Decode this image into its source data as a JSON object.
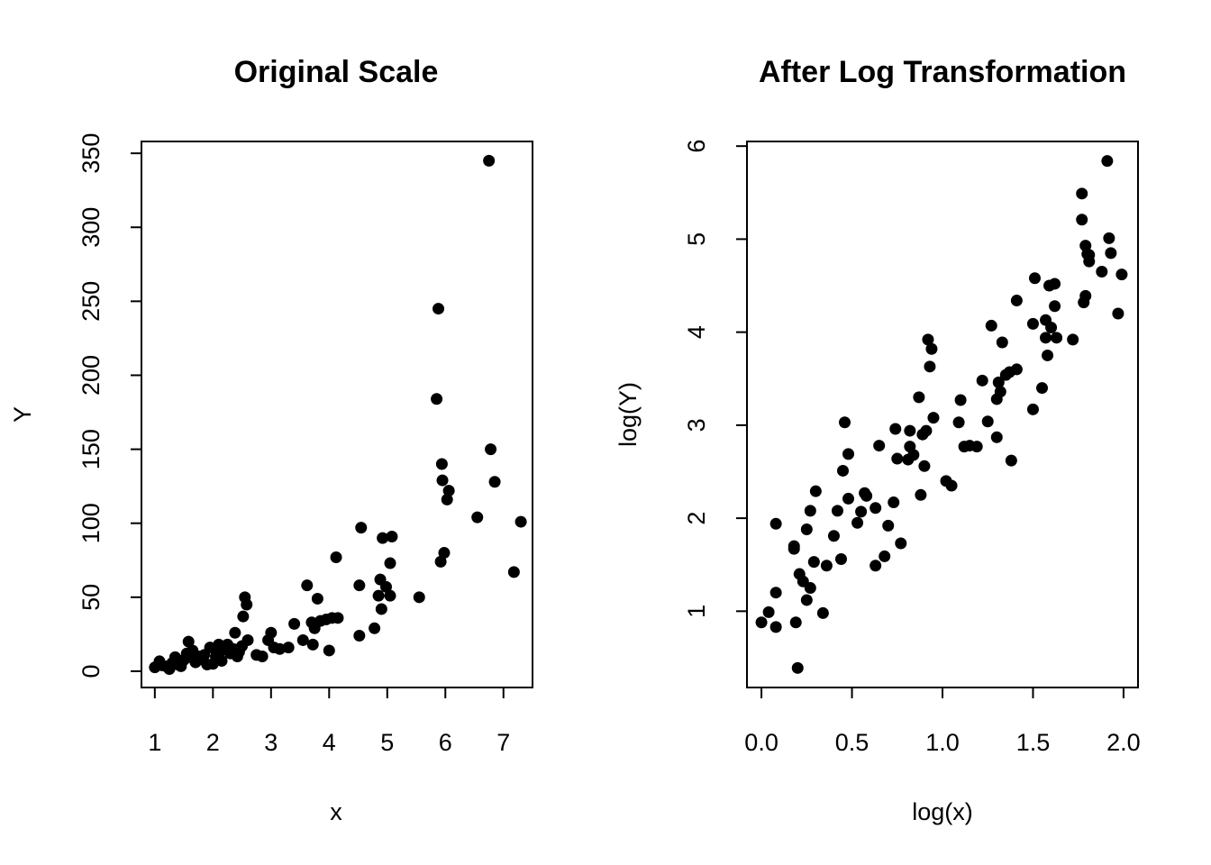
{
  "chart_data": [
    {
      "type": "scatter",
      "title": "Original Scale",
      "xlabel": "x",
      "ylabel": "Y",
      "xlim": [
        0.77,
        7.5
      ],
      "ylim": [
        -11,
        358
      ],
      "xticks": [
        1,
        2,
        3,
        4,
        5,
        6,
        7
      ],
      "xtick_labels": [
        "1",
        "2",
        "3",
        "4",
        "5",
        "6",
        "7"
      ],
      "yticks": [
        0,
        50,
        100,
        150,
        200,
        250,
        300,
        350
      ],
      "ytick_labels": [
        "0",
        "50",
        "100",
        "150",
        "200",
        "250",
        "300",
        "350"
      ],
      "grid": false,
      "point_color": "#000000",
      "points": [
        [
          1.0,
          2.6
        ],
        [
          1.08,
          6.7
        ],
        [
          1.12,
          4.0
        ],
        [
          1.2,
          3.2
        ],
        [
          1.25,
          1.5
        ],
        [
          1.3,
          5.6
        ],
        [
          1.35,
          9.5
        ],
        [
          1.4,
          4.4
        ],
        [
          1.45,
          3.4
        ],
        [
          1.5,
          7.6
        ],
        [
          1.55,
          12.0
        ],
        [
          1.58,
          20.0
        ],
        [
          1.62,
          9.5
        ],
        [
          1.65,
          14.0
        ],
        [
          1.7,
          6.0
        ],
        [
          1.75,
          10.0
        ],
        [
          1.8,
          8.0
        ],
        [
          1.85,
          11.0
        ],
        [
          1.9,
          4.5
        ],
        [
          1.95,
          16.0
        ],
        [
          2.0,
          5.0
        ],
        [
          2.05,
          10.0
        ],
        [
          2.1,
          18.0
        ],
        [
          2.12,
          13.0
        ],
        [
          2.15,
          7.0
        ],
        [
          2.2,
          16.0
        ],
        [
          2.25,
          18.0
        ],
        [
          2.3,
          12.0
        ],
        [
          2.35,
          15.0
        ],
        [
          2.38,
          26.0
        ],
        [
          2.42,
          10.0
        ],
        [
          2.45,
          13.0
        ],
        [
          2.5,
          17.0
        ],
        [
          2.52,
          37.0
        ],
        [
          2.55,
          50.0
        ],
        [
          2.58,
          45.0
        ],
        [
          2.6,
          21.0
        ],
        [
          2.75,
          11.0
        ],
        [
          2.85,
          10.0
        ],
        [
          2.95,
          21.0
        ],
        [
          3.0,
          26.0
        ],
        [
          3.05,
          16.0
        ],
        [
          3.15,
          15.0
        ],
        [
          3.3,
          16.0
        ],
        [
          3.4,
          32.0
        ],
        [
          3.55,
          21.0
        ],
        [
          3.62,
          58.0
        ],
        [
          3.7,
          33.0
        ],
        [
          3.72,
          18.0
        ],
        [
          3.75,
          29.0
        ],
        [
          3.8,
          49.0
        ],
        [
          3.85,
          34.0
        ],
        [
          3.95,
          35.0
        ],
        [
          4.0,
          14.0
        ],
        [
          4.05,
          36.0
        ],
        [
          4.15,
          36.0
        ],
        [
          4.12,
          77.0
        ],
        [
          4.52,
          24.0
        ],
        [
          4.52,
          58.0
        ],
        [
          4.55,
          97.0
        ],
        [
          4.78,
          29.0
        ],
        [
          4.85,
          51.0
        ],
        [
          4.88,
          62.0
        ],
        [
          4.9,
          42.0
        ],
        [
          4.92,
          90.0
        ],
        [
          4.98,
          57.0
        ],
        [
          5.05,
          73.0
        ],
        [
          5.05,
          51.0
        ],
        [
          5.08,
          91.0
        ],
        [
          5.55,
          50.0
        ],
        [
          5.85,
          184.0
        ],
        [
          5.88,
          245.0
        ],
        [
          5.92,
          74.0
        ],
        [
          5.94,
          140.0
        ],
        [
          5.95,
          129.0
        ],
        [
          5.98,
          80.0
        ],
        [
          6.03,
          116.0
        ],
        [
          6.06,
          122.0
        ],
        [
          6.55,
          104.0
        ],
        [
          6.75,
          345.0
        ],
        [
          6.78,
          150.0
        ],
        [
          6.85,
          128.0
        ],
        [
          7.18,
          67.0
        ],
        [
          7.3,
          101.0
        ]
      ]
    },
    {
      "type": "scatter",
      "title": "After Log Transformation",
      "xlabel": "log(x)",
      "ylabel": "log(Y)",
      "xlim": [
        -0.08,
        2.08
      ],
      "ylim": [
        0.18,
        6.05
      ],
      "xticks": [
        0.0,
        0.5,
        1.0,
        1.5,
        2.0
      ],
      "xtick_labels": [
        "0.0",
        "0.5",
        "1.0",
        "1.5",
        "2.0"
      ],
      "yticks": [
        1,
        2,
        3,
        4,
        5,
        6
      ],
      "ytick_labels": [
        "1",
        "2",
        "3",
        "4",
        "5",
        "6"
      ],
      "grid": false,
      "point_color": "#000000",
      "points": [
        [
          0.0,
          0.88
        ],
        [
          0.04,
          0.99
        ],
        [
          0.08,
          1.2
        ],
        [
          0.08,
          0.83
        ],
        [
          0.08,
          1.94
        ],
        [
          0.18,
          1.67
        ],
        [
          0.18,
          1.7
        ],
        [
          0.19,
          0.88
        ],
        [
          0.2,
          0.39
        ],
        [
          0.21,
          1.4
        ],
        [
          0.23,
          1.32
        ],
        [
          0.25,
          1.12
        ],
        [
          0.25,
          1.88
        ],
        [
          0.27,
          2.08
        ],
        [
          0.27,
          1.25
        ],
        [
          0.29,
          1.53
        ],
        [
          0.3,
          2.29
        ],
        [
          0.34,
          0.98
        ],
        [
          0.36,
          1.49
        ],
        [
          0.4,
          1.81
        ],
        [
          0.42,
          2.08
        ],
        [
          0.44,
          1.56
        ],
        [
          0.45,
          2.51
        ],
        [
          0.46,
          3.03
        ],
        [
          0.48,
          2.69
        ],
        [
          0.48,
          2.21
        ],
        [
          0.53,
          1.95
        ],
        [
          0.55,
          2.07
        ],
        [
          0.57,
          2.27
        ],
        [
          0.58,
          2.24
        ],
        [
          0.63,
          2.11
        ],
        [
          0.63,
          1.49
        ],
        [
          0.65,
          2.78
        ],
        [
          0.68,
          1.59
        ],
        [
          0.7,
          1.92
        ],
        [
          0.73,
          2.17
        ],
        [
          0.74,
          2.96
        ],
        [
          0.75,
          2.64
        ],
        [
          0.77,
          1.73
        ],
        [
          0.81,
          2.63
        ],
        [
          0.82,
          2.77
        ],
        [
          0.82,
          2.94
        ],
        [
          0.84,
          2.68
        ],
        [
          0.87,
          3.3
        ],
        [
          0.88,
          2.25
        ],
        [
          0.89,
          2.9
        ],
        [
          0.9,
          2.56
        ],
        [
          0.91,
          2.94
        ],
        [
          0.92,
          3.92
        ],
        [
          0.93,
          3.63
        ],
        [
          0.94,
          3.82
        ],
        [
          0.95,
          3.08
        ],
        [
          1.02,
          2.4
        ],
        [
          1.05,
          2.35
        ],
        [
          1.09,
          3.03
        ],
        [
          1.1,
          3.27
        ],
        [
          1.12,
          2.77
        ],
        [
          1.15,
          2.78
        ],
        [
          1.19,
          2.77
        ],
        [
          1.22,
          3.48
        ],
        [
          1.25,
          3.04
        ],
        [
          1.27,
          4.07
        ],
        [
          1.3,
          3.28
        ],
        [
          1.3,
          2.87
        ],
        [
          1.31,
          3.46
        ],
        [
          1.32,
          3.36
        ],
        [
          1.33,
          3.89
        ],
        [
          1.35,
          3.54
        ],
        [
          1.37,
          3.57
        ],
        [
          1.38,
          2.62
        ],
        [
          1.41,
          3.6
        ],
        [
          1.41,
          4.34
        ],
        [
          1.5,
          4.09
        ],
        [
          1.51,
          4.58
        ],
        [
          1.5,
          3.17
        ],
        [
          1.55,
          3.4
        ],
        [
          1.57,
          4.13
        ],
        [
          1.57,
          3.94
        ],
        [
          1.58,
          3.75
        ],
        [
          1.59,
          4.5
        ],
        [
          1.6,
          4.05
        ],
        [
          1.62,
          4.28
        ],
        [
          1.62,
          4.52
        ],
        [
          1.63,
          3.94
        ],
        [
          1.72,
          3.92
        ],
        [
          1.77,
          5.49
        ],
        [
          1.77,
          5.21
        ],
        [
          1.78,
          4.32
        ],
        [
          1.79,
          4.93
        ],
        [
          1.79,
          4.39
        ],
        [
          1.8,
          4.84
        ],
        [
          1.81,
          4.76
        ],
        [
          1.81,
          4.83
        ],
        [
          1.88,
          4.65
        ],
        [
          1.91,
          5.84
        ],
        [
          1.92,
          5.01
        ],
        [
          1.93,
          4.85
        ],
        [
          1.97,
          4.2
        ],
        [
          1.99,
          4.62
        ]
      ]
    }
  ]
}
